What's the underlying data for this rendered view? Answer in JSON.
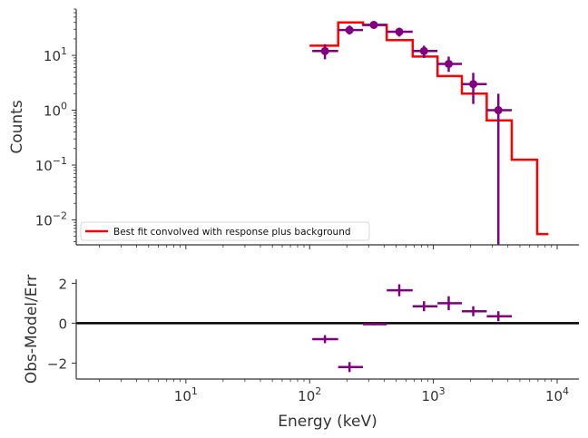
{
  "chart_data": [
    {
      "type": "scatter",
      "panel": "top",
      "ylabel": "Counts",
      "xscale": "log",
      "yscale": "log",
      "xlim": [
        1.3,
        15000
      ],
      "ylim": [
        0.0035,
        70
      ],
      "y_ticks": [
        {
          "value": 0.01,
          "mant": "10",
          "exp": "−2"
        },
        {
          "value": 0.1,
          "mant": "10",
          "exp": "−1"
        },
        {
          "value": 1,
          "mant": "10",
          "exp": "0"
        },
        {
          "value": 10,
          "mant": "10",
          "exp": "1"
        }
      ],
      "legend_position": "lower-left",
      "colors": {
        "data": "#800080",
        "model": "#ff0000"
      },
      "series": [
        {
          "name": "Best fit convolved with response plus background",
          "kind": "step",
          "bin_edges": [
            100,
            170,
            270,
            420,
            680,
            1080,
            1700,
            2700,
            4300,
            6900,
            8500
          ],
          "values": [
            15,
            40,
            36,
            19,
            9.5,
            4.2,
            2.0,
            0.65,
            0.125,
            0.0055
          ]
        },
        {
          "kind": "points_with_errors",
          "points": [
            {
              "x": 133,
              "xlo": 105,
              "xhi": 170,
              "y": 12,
              "ylo": 8.5,
              "yhi": 16
            },
            {
              "x": 210,
              "xlo": 170,
              "xhi": 270,
              "y": 29,
              "ylo": 24,
              "yhi": 35
            },
            {
              "x": 330,
              "xlo": 270,
              "xhi": 420,
              "y": 36,
              "ylo": 31,
              "yhi": 42
            },
            {
              "x": 530,
              "xlo": 420,
              "xhi": 680,
              "y": 27,
              "ylo": 22,
              "yhi": 32
            },
            {
              "x": 840,
              "xlo": 680,
              "xhi": 1080,
              "y": 12,
              "ylo": 9,
              "yhi": 15
            },
            {
              "x": 1330,
              "xlo": 1080,
              "xhi": 1700,
              "y": 7,
              "ylo": 5,
              "yhi": 9.5
            },
            {
              "x": 2100,
              "xlo": 1700,
              "xhi": 2700,
              "y": 3,
              "ylo": 1.3,
              "yhi": 4.8
            },
            {
              "x": 3350,
              "xlo": 2700,
              "xhi": 4300,
              "y": 1,
              "ylo": 0.001,
              "yhi": 2.0
            }
          ]
        }
      ]
    },
    {
      "type": "scatter",
      "panel": "bottom",
      "xlabel": "Energy (keV)",
      "ylabel": "Obs-Model/Err",
      "xscale": "log",
      "xlim": [
        1.3,
        15000
      ],
      "ylim": [
        -2.8,
        2.2
      ],
      "y_ticks": [
        {
          "value": -2,
          "label": "−2"
        },
        {
          "value": 0,
          "label": "0"
        },
        {
          "value": 2,
          "label": "2"
        }
      ],
      "x_ticks": [
        {
          "value": 10,
          "mant": "10",
          "exp": "1"
        },
        {
          "value": 100,
          "mant": "10",
          "exp": "2"
        },
        {
          "value": 1000,
          "mant": "10",
          "exp": "3"
        },
        {
          "value": 10000,
          "mant": "10",
          "exp": "4"
        }
      ],
      "zero_line": true,
      "colors": {
        "data": "#800080",
        "zero": "#000000"
      },
      "points": [
        {
          "x": 133,
          "xlo": 105,
          "xhi": 170,
          "y": -0.8,
          "ylo": -1.0,
          "yhi": -0.6
        },
        {
          "x": 210,
          "xlo": 170,
          "xhi": 270,
          "y": -2.2,
          "ylo": -2.45,
          "yhi": -1.95
        },
        {
          "x": 330,
          "xlo": 270,
          "xhi": 420,
          "y": -0.05,
          "ylo": -0.1,
          "yhi": 0.0
        },
        {
          "x": 530,
          "xlo": 420,
          "xhi": 680,
          "y": 1.65,
          "ylo": 1.35,
          "yhi": 1.95
        },
        {
          "x": 840,
          "xlo": 680,
          "xhi": 1080,
          "y": 0.85,
          "ylo": 0.6,
          "yhi": 1.1
        },
        {
          "x": 1330,
          "xlo": 1080,
          "xhi": 1700,
          "y": 1.0,
          "ylo": 0.65,
          "yhi": 1.35
        },
        {
          "x": 2100,
          "xlo": 1700,
          "xhi": 2700,
          "y": 0.6,
          "ylo": 0.35,
          "yhi": 0.85
        },
        {
          "x": 3350,
          "xlo": 2700,
          "xhi": 4300,
          "y": 0.35,
          "ylo": 0.1,
          "yhi": 0.6
        }
      ]
    }
  ]
}
